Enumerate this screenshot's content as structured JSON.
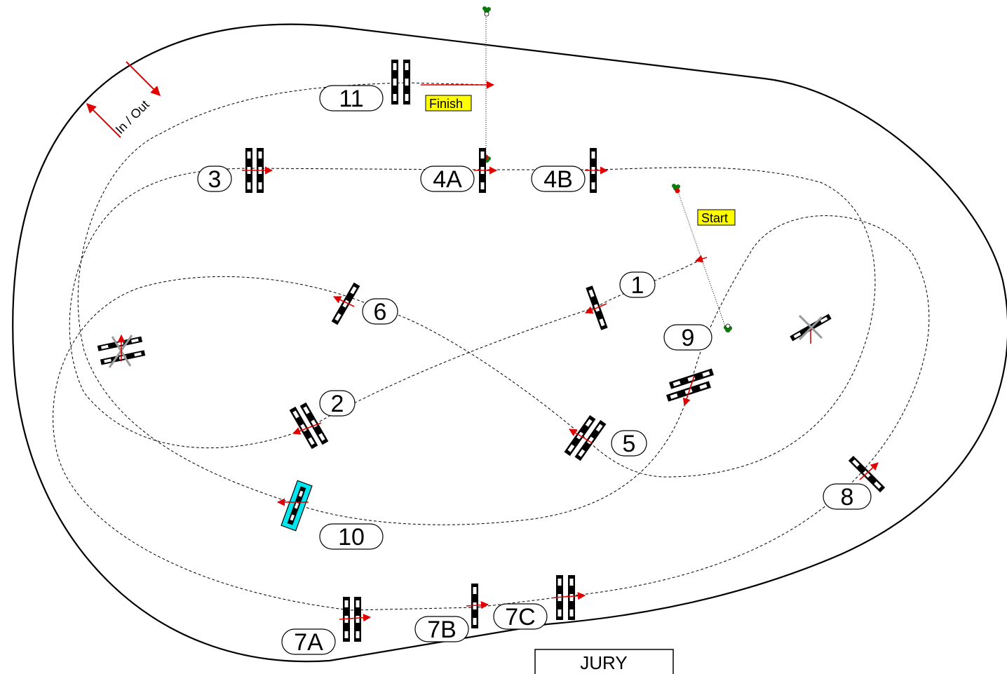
{
  "course": {
    "in_out_label": "In / Out",
    "start_label": "Start",
    "finish_label": "Finish",
    "jury_label": "JURY",
    "fences": [
      {
        "id": "f1",
        "label": "1"
      },
      {
        "id": "f2",
        "label": "2"
      },
      {
        "id": "f3",
        "label": "3"
      },
      {
        "id": "f4a",
        "label": "4A"
      },
      {
        "id": "f4b",
        "label": "4B"
      },
      {
        "id": "f5",
        "label": "5"
      },
      {
        "id": "f6",
        "label": "6"
      },
      {
        "id": "f7a",
        "label": "7A"
      },
      {
        "id": "f7b",
        "label": "7B"
      },
      {
        "id": "f7c",
        "label": "7C"
      },
      {
        "id": "f8",
        "label": "8"
      },
      {
        "id": "f9",
        "label": "9"
      },
      {
        "id": "f10",
        "label": "10"
      },
      {
        "id": "f11",
        "label": "11"
      }
    ],
    "colors": {
      "label_highlight": "#ffff00",
      "direction": "#e00000",
      "water": "#00e5ee",
      "flag_green": "#0a7a0a",
      "flag_red": "#e00000",
      "unused_fence": "#999999"
    }
  }
}
